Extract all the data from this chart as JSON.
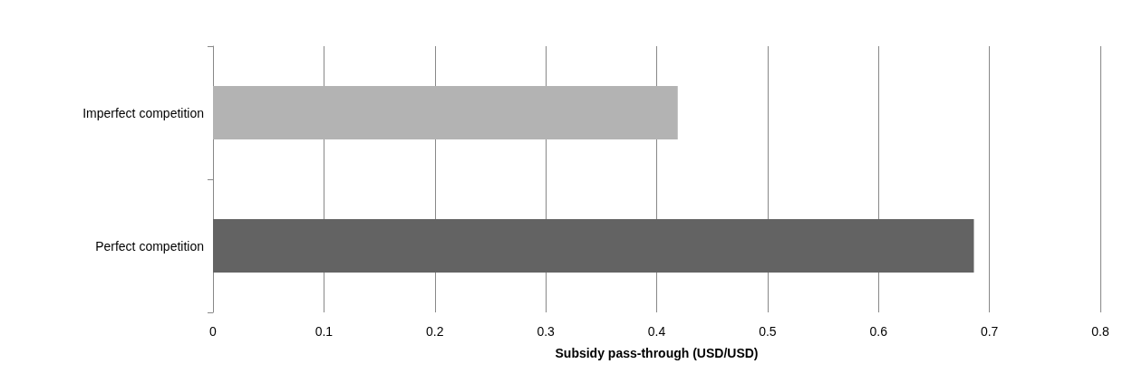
{
  "chart_data": {
    "type": "bar",
    "orientation": "horizontal",
    "xlabel": "Subsidy pass-through (USD/USD)",
    "categories": [
      "Imperfect competition",
      "Perfect competition"
    ],
    "values": [
      0.419,
      0.686
    ],
    "colors": [
      "#b3b3b3",
      "#636363"
    ],
    "xlim": [
      0,
      0.8
    ],
    "xticks": [
      0,
      0.1,
      0.2,
      0.3,
      0.4,
      0.5,
      0.6,
      0.7,
      0.8
    ],
    "grid": "x"
  }
}
